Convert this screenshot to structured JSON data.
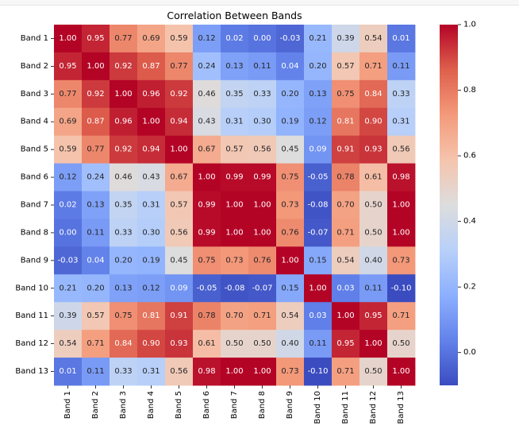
{
  "chart_data": {
    "type": "heatmap",
    "title": "Correlation Between Bands",
    "rows": [
      "Band 1",
      "Band 2",
      "Band 3",
      "Band 4",
      "Band 5",
      "Band 6",
      "Band 7",
      "Band 8",
      "Band 9",
      "Band 10",
      "Band 11",
      "Band 12",
      "Band 13"
    ],
    "columns": [
      "Band 1",
      "Band 2",
      "Band 3",
      "Band 4",
      "Band 5",
      "Band 6",
      "Band 7",
      "Band 8",
      "Band 9",
      "Band 10",
      "Band 11",
      "Band 12",
      "Band 13"
    ],
    "values": [
      [
        1.0,
        0.95,
        0.77,
        0.69,
        0.59,
        0.12,
        0.02,
        0.0,
        -0.03,
        0.21,
        0.39,
        0.54,
        0.01
      ],
      [
        0.95,
        1.0,
        0.92,
        0.87,
        0.77,
        0.24,
        0.13,
        0.11,
        0.04,
        0.2,
        0.57,
        0.71,
        0.11
      ],
      [
        0.77,
        0.92,
        1.0,
        0.96,
        0.92,
        0.46,
        0.35,
        0.33,
        0.2,
        0.13,
        0.75,
        0.84,
        0.33
      ],
      [
        0.69,
        0.87,
        0.96,
        1.0,
        0.94,
        0.43,
        0.31,
        0.3,
        0.19,
        0.12,
        0.81,
        0.9,
        0.31
      ],
      [
        0.59,
        0.77,
        0.92,
        0.94,
        1.0,
        0.67,
        0.57,
        0.56,
        0.45,
        0.09,
        0.91,
        0.93,
        0.56
      ],
      [
        0.12,
        0.24,
        0.46,
        0.43,
        0.67,
        1.0,
        0.99,
        0.99,
        0.75,
        -0.05,
        0.78,
        0.61,
        0.98
      ],
      [
        0.02,
        0.13,
        0.35,
        0.31,
        0.57,
        0.99,
        1.0,
        1.0,
        0.73,
        -0.08,
        0.7,
        0.5,
        1.0
      ],
      [
        0.0,
        0.11,
        0.33,
        0.3,
        0.56,
        0.99,
        1.0,
        1.0,
        0.76,
        -0.07,
        0.71,
        0.5,
        1.0
      ],
      [
        -0.03,
        0.04,
        0.2,
        0.19,
        0.45,
        0.75,
        0.73,
        0.76,
        1.0,
        0.15,
        0.54,
        0.4,
        0.73
      ],
      [
        0.21,
        0.2,
        0.13,
        0.12,
        0.09,
        -0.05,
        -0.08,
        -0.07,
        0.15,
        1.0,
        0.03,
        0.11,
        -0.1
      ],
      [
        0.39,
        0.57,
        0.75,
        0.81,
        0.91,
        0.78,
        0.7,
        0.71,
        0.54,
        0.03,
        1.0,
        0.95,
        0.71
      ],
      [
        0.54,
        0.71,
        0.84,
        0.9,
        0.93,
        0.61,
        0.5,
        0.5,
        0.4,
        0.11,
        0.95,
        1.0,
        0.5
      ],
      [
        0.01,
        0.11,
        0.33,
        0.31,
        0.56,
        0.98,
        1.0,
        1.0,
        0.73,
        -0.1,
        0.71,
        0.5,
        1.0
      ]
    ],
    "colormap": "coolwarm",
    "vmin": -0.1,
    "vmax": 1.0,
    "colorbar_ticks": [
      0.0,
      0.2,
      0.4,
      0.6,
      0.8,
      1.0
    ],
    "colorbar_tick_labels": [
      "0.0",
      "0.2",
      "0.4",
      "0.6",
      "0.8",
      "1.0"
    ]
  }
}
